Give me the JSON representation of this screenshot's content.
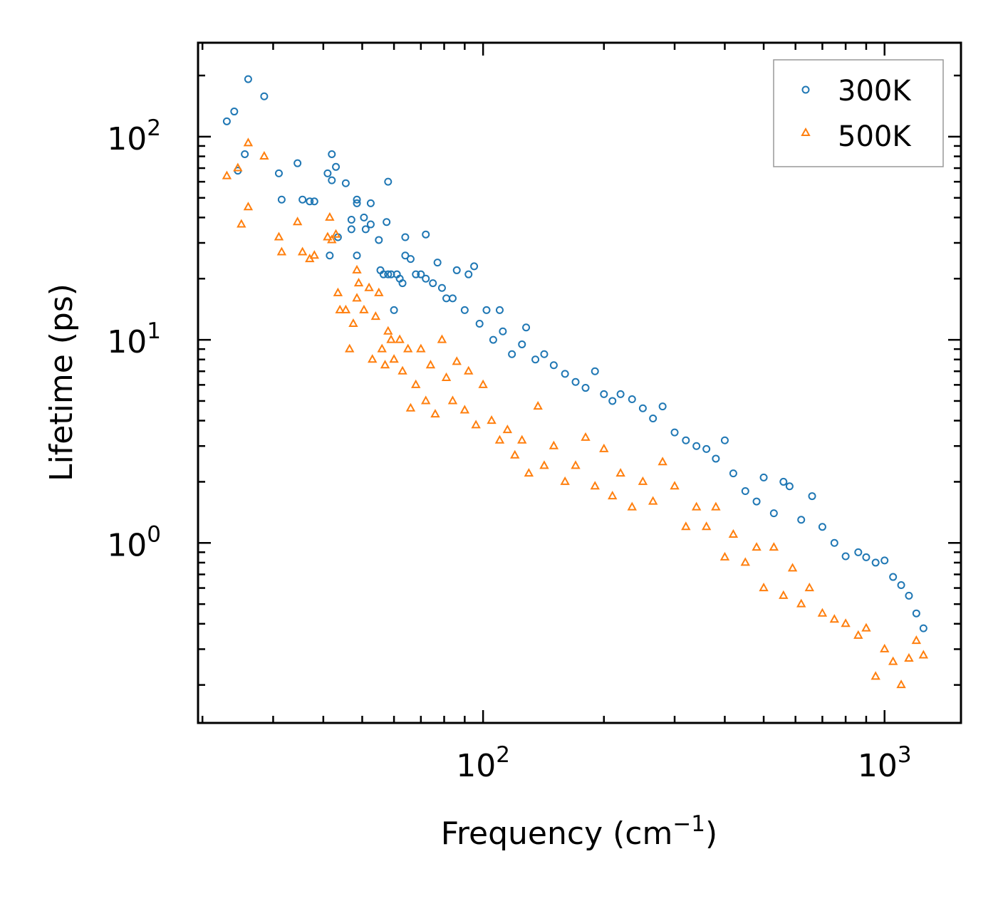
{
  "chart_data": {
    "type": "scatter",
    "title": "",
    "xlabel": "Frequency (cm",
    "xlabel_sup": "−1",
    "xlabel_close": ")",
    "ylabel": "Lifetime (ps)",
    "xscale": "log",
    "yscale": "log",
    "xlim": [
      19.5,
      1550
    ],
    "ylim": [
      0.13,
      290
    ],
    "x_tick_labels": [
      {
        "value": 100,
        "base": "10",
        "exp": "2"
      },
      {
        "value": 1000,
        "base": "10",
        "exp": "3"
      }
    ],
    "y_tick_labels": [
      {
        "value": 1,
        "base": "10",
        "exp": "0"
      },
      {
        "value": 10,
        "base": "10",
        "exp": "1"
      },
      {
        "value": 100,
        "base": "10",
        "exp": "2"
      }
    ],
    "legend_position": "top-right",
    "series": [
      {
        "name": "300K",
        "marker": "circle",
        "color": "#1f77b4",
        "points": [
          [
            23,
            119
          ],
          [
            24,
            133
          ],
          [
            24.5,
            68
          ],
          [
            25.5,
            82
          ],
          [
            26,
            192
          ],
          [
            28.5,
            158
          ],
          [
            31,
            66
          ],
          [
            31.5,
            49
          ],
          [
            34.5,
            74
          ],
          [
            35.5,
            49
          ],
          [
            37,
            48
          ],
          [
            38,
            48
          ],
          [
            41,
            66
          ],
          [
            42,
            82
          ],
          [
            42,
            61
          ],
          [
            43,
            71
          ],
          [
            43.5,
            32
          ],
          [
            41.5,
            26
          ],
          [
            45.5,
            59
          ],
          [
            47,
            39
          ],
          [
            48.5,
            47
          ],
          [
            48.5,
            49
          ],
          [
            47,
            35
          ],
          [
            48.5,
            26
          ],
          [
            50.5,
            40
          ],
          [
            51,
            35
          ],
          [
            52.5,
            47
          ],
          [
            52.5,
            37
          ],
          [
            55,
            31
          ],
          [
            55.5,
            22
          ],
          [
            56.5,
            21
          ],
          [
            58,
            60
          ],
          [
            57.5,
            38
          ],
          [
            58,
            21
          ],
          [
            59,
            21
          ],
          [
            60,
            14
          ],
          [
            61,
            21
          ],
          [
            62,
            20
          ],
          [
            63,
            19
          ],
          [
            64,
            32
          ],
          [
            64,
            26
          ],
          [
            66,
            25
          ],
          [
            68,
            21
          ],
          [
            70,
            21
          ],
          [
            72,
            33
          ],
          [
            72,
            20
          ],
          [
            75,
            19
          ],
          [
            77,
            24
          ],
          [
            79,
            18
          ],
          [
            81,
            16
          ],
          [
            84,
            16
          ],
          [
            86,
            22
          ],
          [
            90,
            14
          ],
          [
            92,
            21
          ],
          [
            95,
            23
          ],
          [
            98,
            12
          ],
          [
            102,
            14
          ],
          [
            106,
            10
          ],
          [
            110,
            14
          ],
          [
            112,
            11
          ],
          [
            118,
            8.5
          ],
          [
            125,
            9.5
          ],
          [
            128,
            11.5
          ],
          [
            135,
            8
          ],
          [
            142,
            8.5
          ],
          [
            150,
            7.5
          ],
          [
            160,
            6.8
          ],
          [
            170,
            6.2
          ],
          [
            180,
            5.8
          ],
          [
            190,
            7
          ],
          [
            200,
            5.4
          ],
          [
            210,
            5
          ],
          [
            220,
            5.4
          ],
          [
            235,
            5.1
          ],
          [
            250,
            4.6
          ],
          [
            265,
            4.1
          ],
          [
            280,
            4.7
          ],
          [
            300,
            3.5
          ],
          [
            320,
            3.2
          ],
          [
            340,
            3
          ],
          [
            360,
            2.9
          ],
          [
            380,
            2.6
          ],
          [
            400,
            3.2
          ],
          [
            420,
            2.2
          ],
          [
            450,
            1.8
          ],
          [
            480,
            1.6
          ],
          [
            500,
            2.1
          ],
          [
            530,
            1.4
          ],
          [
            560,
            2
          ],
          [
            580,
            1.9
          ],
          [
            620,
            1.3
          ],
          [
            660,
            1.7
          ],
          [
            700,
            1.2
          ],
          [
            750,
            1
          ],
          [
            800,
            0.86
          ],
          [
            860,
            0.9
          ],
          [
            900,
            0.85
          ],
          [
            950,
            0.8
          ],
          [
            1000,
            0.82
          ],
          [
            1050,
            0.68
          ],
          [
            1100,
            0.62
          ],
          [
            1150,
            0.55
          ],
          [
            1200,
            0.45
          ],
          [
            1250,
            0.38
          ]
        ]
      },
      {
        "name": "500K",
        "marker": "triangle",
        "color": "#ff7f0e",
        "points": [
          [
            23,
            64
          ],
          [
            24.5,
            70
          ],
          [
            25,
            37
          ],
          [
            26,
            45
          ],
          [
            26,
            93
          ],
          [
            28.5,
            80
          ],
          [
            31,
            32
          ],
          [
            31.5,
            27
          ],
          [
            34.5,
            38
          ],
          [
            35.5,
            27
          ],
          [
            37,
            25
          ],
          [
            38,
            26
          ],
          [
            41,
            32
          ],
          [
            41.5,
            40
          ],
          [
            42,
            31
          ],
          [
            43,
            33
          ],
          [
            43.5,
            17
          ],
          [
            44,
            14
          ],
          [
            45.5,
            14
          ],
          [
            46.5,
            9
          ],
          [
            47.5,
            12
          ],
          [
            48.5,
            22
          ],
          [
            48.5,
            16
          ],
          [
            49,
            19
          ],
          [
            50.5,
            14
          ],
          [
            52,
            18
          ],
          [
            53,
            8
          ],
          [
            54,
            13
          ],
          [
            55,
            17
          ],
          [
            56,
            9
          ],
          [
            57,
            7.5
          ],
          [
            58,
            11
          ],
          [
            59,
            10
          ],
          [
            60,
            8
          ],
          [
            62,
            10
          ],
          [
            63,
            7
          ],
          [
            65,
            9
          ],
          [
            66,
            4.6
          ],
          [
            68,
            6
          ],
          [
            70,
            9
          ],
          [
            72,
            5
          ],
          [
            74,
            7.5
          ],
          [
            76,
            4.3
          ],
          [
            79,
            10
          ],
          [
            81,
            6.5
          ],
          [
            84,
            5
          ],
          [
            86,
            7.8
          ],
          [
            90,
            4.5
          ],
          [
            92,
            7
          ],
          [
            96,
            3.8
          ],
          [
            100,
            6
          ],
          [
            105,
            4
          ],
          [
            110,
            3.2
          ],
          [
            115,
            3.6
          ],
          [
            120,
            2.7
          ],
          [
            125,
            3.2
          ],
          [
            130,
            2.2
          ],
          [
            137,
            4.7
          ],
          [
            142,
            2.4
          ],
          [
            150,
            3
          ],
          [
            160,
            2
          ],
          [
            170,
            2.4
          ],
          [
            180,
            3.3
          ],
          [
            190,
            1.9
          ],
          [
            200,
            2.9
          ],
          [
            210,
            1.7
          ],
          [
            220,
            2.2
          ],
          [
            235,
            1.5
          ],
          [
            250,
            2
          ],
          [
            265,
            1.6
          ],
          [
            280,
            2.5
          ],
          [
            300,
            1.9
          ],
          [
            320,
            1.2
          ],
          [
            340,
            1.5
          ],
          [
            360,
            1.2
          ],
          [
            380,
            1.5
          ],
          [
            400,
            0.85
          ],
          [
            420,
            1.1
          ],
          [
            450,
            0.8
          ],
          [
            480,
            0.95
          ],
          [
            500,
            0.6
          ],
          [
            530,
            0.95
          ],
          [
            560,
            0.55
          ],
          [
            590,
            0.75
          ],
          [
            620,
            0.5
          ],
          [
            650,
            0.6
          ],
          [
            700,
            0.45
          ],
          [
            750,
            0.42
          ],
          [
            800,
            0.4
          ],
          [
            860,
            0.35
          ],
          [
            900,
            0.38
          ],
          [
            950,
            0.22
          ],
          [
            1000,
            0.3
          ],
          [
            1050,
            0.26
          ],
          [
            1100,
            0.2
          ],
          [
            1150,
            0.27
          ],
          [
            1200,
            0.33
          ],
          [
            1250,
            0.28
          ]
        ]
      }
    ]
  }
}
